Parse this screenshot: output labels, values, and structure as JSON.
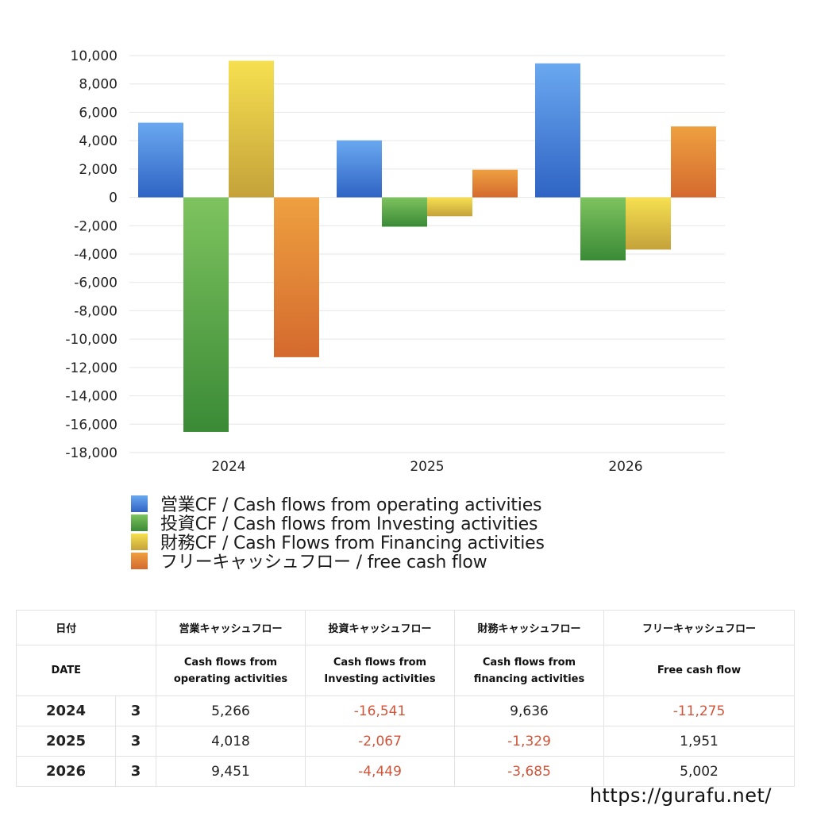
{
  "chart_data": {
    "type": "bar",
    "categories": [
      "2024",
      "2025",
      "2026"
    ],
    "series": [
      {
        "name": "営業CF / Cash flows from operating activities",
        "values": [
          5266,
          4018,
          9451
        ],
        "color": "#3d7fdc"
      },
      {
        "name": "投資CF / Cash flows from Investing activities",
        "values": [
          -16541,
          -2067,
          -4449
        ],
        "color": "#5da847"
      },
      {
        "name": "財務CF / Cash Flows from Financing activities",
        "values": [
          9636,
          -1329,
          -3685
        ],
        "color": "#e6c840"
      },
      {
        "name": "フリーキャッシュフロー / free cash flow",
        "values": [
          -11275,
          1951,
          5002
        ],
        "color": "#e27f33"
      }
    ],
    "ylim": [
      -18000,
      10000
    ],
    "yticks": [
      10000,
      8000,
      6000,
      4000,
      2000,
      0,
      -2000,
      -4000,
      -6000,
      -8000,
      -10000,
      -12000,
      -14000,
      -16000,
      -18000
    ],
    "ytick_labels": [
      "10,000",
      "8,000",
      "6,000",
      "4,000",
      "2,000",
      "0",
      "-2,000",
      "-4,000",
      "-6,000",
      "-8,000",
      "-10,000",
      "-12,000",
      "-14,000",
      "-16,000",
      "-18,000"
    ],
    "grid": true,
    "legend_position": "bottom"
  },
  "table": {
    "headers": {
      "date_jp": "日付",
      "operating_jp": "営業キャッシュフロー",
      "investing_jp": "投資キャッシュフロー",
      "financing_jp": "財務キャッシュフロー",
      "free_jp": "フリーキャッシュフロー",
      "date_en": "DATE",
      "operating_en_1": "Cash flows from",
      "operating_en_2": "operating activities",
      "investing_en_1": "Cash flows from",
      "investing_en_2": "Investing activities",
      "financing_en_1": "Cash flows from",
      "financing_en_2": "financing activities",
      "free_en": "Free cash flow"
    },
    "rows": [
      {
        "year": "2024",
        "month": "3",
        "operating": "5,266",
        "investing": "-16,541",
        "financing": "9,636",
        "free": "-11,275"
      },
      {
        "year": "2025",
        "month": "3",
        "operating": "4,018",
        "investing": "-2,067",
        "financing": "-1,329",
        "free": "1,951"
      },
      {
        "year": "2026",
        "month": "3",
        "operating": "9,451",
        "investing": "-4,449",
        "financing": "-3,685",
        "free": "5,002"
      }
    ]
  },
  "footer": {
    "url": "https://gurafu.net/"
  }
}
